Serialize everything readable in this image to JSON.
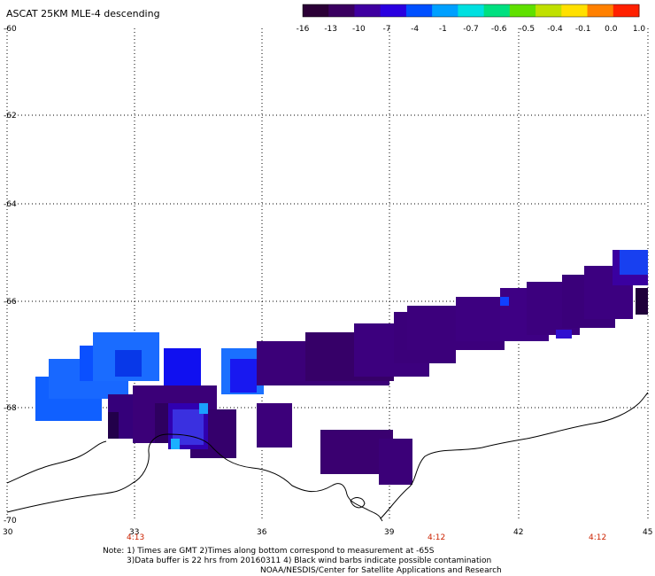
{
  "title": "ASCAT 25KM MLE-4 descending",
  "colorbar": {
    "labels": [
      "-16",
      "-13",
      "-10",
      "-7",
      "-4",
      "-1",
      "-0.7",
      "-0.6",
      "-0.5",
      "-0.4",
      "-0.1",
      "0.0",
      "1.0"
    ],
    "colors": [
      "#2b0036",
      "#3a0060",
      "#3f00a0",
      "#2a00e0",
      "#0050ff",
      "#00a0ff",
      "#00e0e0",
      "#00e080",
      "#60e000",
      "#c0e000",
      "#ffe000",
      "#ff8000",
      "#ff2000"
    ]
  },
  "axes": {
    "lat_labels": [
      "-60",
      "-62",
      "-64",
      "-66",
      "-68",
      "-70"
    ],
    "lon_labels": [
      "30",
      "33",
      "36",
      "39",
      "42",
      "45"
    ]
  },
  "times": [
    "4:13",
    "4:12",
    "4:12"
  ],
  "notes": [
    "Note: 1) Times are GMT 2)Times along bottom correspond to measurement at -65S",
    "3)Data buffer is 22 hrs from 20160311 4) Black wind barbs indicate possible contamination",
    "NOAA/NESDIS/Center for Satellite Applications and Research"
  ]
}
